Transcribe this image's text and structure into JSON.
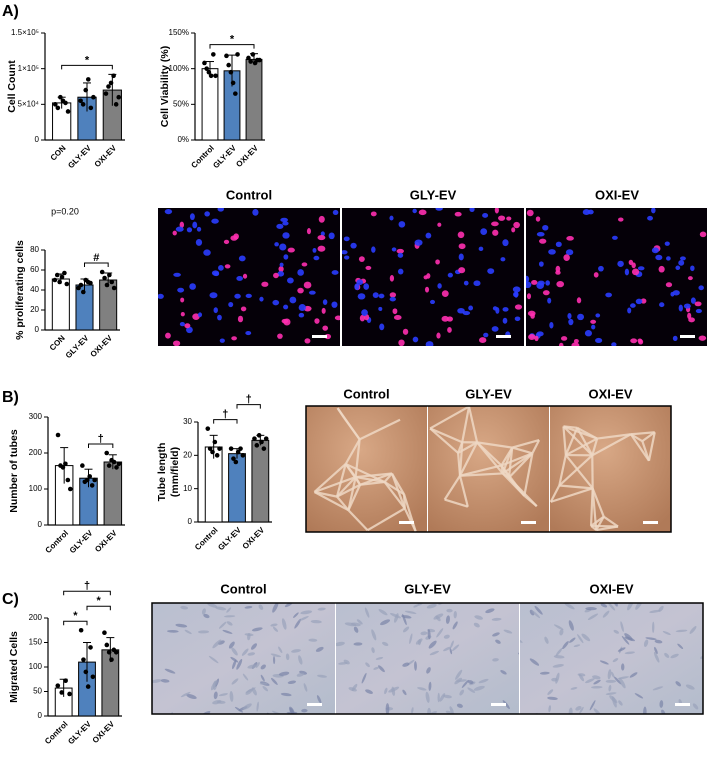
{
  "panel_labels": [
    "A)",
    "B)",
    "C)"
  ],
  "image_titles": {
    "A": [
      "Control",
      "GLY-EV",
      "OXI-EV"
    ],
    "B": [
      "Control",
      "GLY-EV",
      "OXI-EV"
    ],
    "C": [
      "Control",
      "GLY-EV",
      "OXI-EV"
    ]
  },
  "chart_data": [
    {
      "type": "bar",
      "y_label": "Cell Count",
      "categories": [
        "CON",
        "GLY-EV",
        "OXI-EV"
      ],
      "values": [
        52000,
        60000,
        70000
      ],
      "errors": [
        8000,
        20000,
        22000
      ],
      "points": [
        [
          50000,
          45000,
          60000,
          55000,
          52000,
          40000
        ],
        [
          55000,
          50000,
          70000,
          85000,
          45000,
          60000
        ],
        [
          65000,
          75000,
          80000,
          90000,
          50000,
          60000
        ]
      ],
      "colors": [
        "#ffffff",
        "#4f81bd",
        "#808080"
      ],
      "ylim": [
        0,
        150000
      ],
      "yticks": [
        0,
        {
          "value": 50000,
          "label": "5×10⁴"
        },
        {
          "value": 100000,
          "label": "1×10⁵"
        },
        {
          "value": 150000,
          "label": "1.5×10⁵"
        }
      ],
      "annotations": [
        {
          "text": "*",
          "span": [
            0,
            2
          ]
        }
      ]
    },
    {
      "type": "bar",
      "y_label": "Cell Viability (%)",
      "categories": [
        "Control",
        "GLY-EV",
        "OXI-EV"
      ],
      "values": [
        100,
        97,
        113
      ],
      "errors": [
        10,
        22,
        8
      ],
      "points": [
        [
          108,
          100,
          95,
          90,
          120,
          90
        ],
        [
          118,
          105,
          95,
          80,
          65,
          120
        ],
        [
          115,
          110,
          120,
          108,
          112,
          112
        ]
      ],
      "colors": [
        "#ffffff",
        "#4f81bd",
        "#808080"
      ],
      "ylim": [
        0,
        150
      ],
      "yticks": [
        {
          "value": 0,
          "label": "0%"
        },
        {
          "value": 50,
          "label": "50%"
        },
        {
          "value": 100,
          "label": "100%"
        },
        {
          "value": 150,
          "label": "150%"
        }
      ],
      "annotations": [
        {
          "text": "*",
          "span": [
            0,
            2
          ]
        }
      ]
    },
    {
      "type": "bar",
      "y_label": "% proliferating cells",
      "subtitle": "p=0.20",
      "categories": [
        "CON",
        "GLY-EV",
        "OXI-EV"
      ],
      "values": [
        51,
        45,
        50
      ],
      "errors": [
        5,
        6,
        7
      ],
      "points": [
        [
          50,
          55,
          48,
          53,
          57,
          46
        ],
        [
          42,
          45,
          38,
          50,
          48,
          47
        ],
        [
          58,
          52,
          45,
          55,
          48,
          42
        ]
      ],
      "colors": [
        "#ffffff",
        "#4f81bd",
        "#808080"
      ],
      "ylim": [
        0,
        80
      ],
      "yticks": [
        0,
        20,
        40,
        60,
        80
      ],
      "annotations": [
        {
          "text": "#",
          "span": [
            1,
            2
          ]
        }
      ]
    },
    {
      "type": "bar",
      "y_label": "Number of tubes",
      "categories": [
        "Control",
        "GLY-EV",
        "OXI-EV"
      ],
      "values": [
        165,
        130,
        175
      ],
      "errors": [
        50,
        25,
        20
      ],
      "points": [
        [
          250,
          165,
          160,
          170,
          125,
          100
        ],
        [
          165,
          120,
          125,
          135,
          110,
          125
        ],
        [
          200,
          165,
          180,
          175,
          160,
          170
        ]
      ],
      "colors": [
        "#ffffff",
        "#4f81bd",
        "#808080"
      ],
      "ylim": [
        0,
        300
      ],
      "yticks": [
        0,
        100,
        200,
        300
      ],
      "annotations": [
        {
          "text": "†",
          "span": [
            1,
            2
          ]
        }
      ]
    },
    {
      "type": "bar",
      "y_label": [
        "Tube length",
        "(mm/field)"
      ],
      "categories": [
        "Control",
        "GLY-EV",
        "OXI-EV"
      ],
      "values": [
        22.5,
        20.5,
        24.5
      ],
      "errors": [
        3.5,
        1.5,
        1.5
      ],
      "points": [
        [
          28,
          22,
          21,
          24,
          20,
          22
        ],
        [
          22,
          19,
          18,
          21,
          22,
          20
        ],
        [
          25,
          23,
          26,
          24,
          22,
          25
        ]
      ],
      "colors": [
        "#ffffff",
        "#4f81bd",
        "#808080"
      ],
      "ylim": [
        0,
        30
      ],
      "yticks": [
        0,
        10,
        20,
        30
      ],
      "annotations": [
        {
          "text": "†",
          "span": [
            0,
            1
          ]
        },
        {
          "text": "†",
          "span": [
            1,
            2
          ]
        }
      ]
    },
    {
      "type": "bar",
      "y_label": "Migrated Cells",
      "categories": [
        "Control",
        "GLY-EV",
        "OXI-EV"
      ],
      "values": [
        57,
        110,
        135
      ],
      "errors": [
        18,
        40,
        25
      ],
      "points": [
        [
          62,
          48,
          72,
          45
        ],
        [
          175,
          115,
          90,
          60,
          140,
          80
        ],
        [
          170,
          145,
          130,
          115,
          135,
          130
        ]
      ],
      "colors": [
        "#ffffff",
        "#4f81bd",
        "#808080"
      ],
      "ylim": [
        0,
        200
      ],
      "yticks": [
        0,
        50,
        100,
        150,
        200
      ],
      "annotations": [
        {
          "text": "*",
          "span": [
            0,
            1
          ]
        },
        {
          "text": "*",
          "span": [
            1,
            2
          ]
        },
        {
          "text": "†",
          "span": [
            0,
            2
          ]
        }
      ]
    }
  ]
}
